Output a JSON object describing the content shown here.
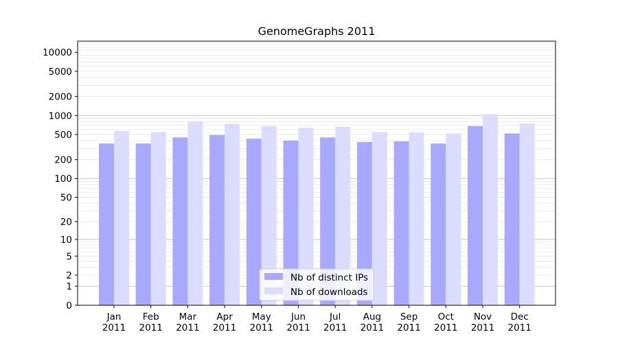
{
  "chart_data": {
    "type": "bar",
    "title": "GenomeGraphs 2011",
    "xlabel": "",
    "ylabel": "",
    "y_scale": "symlog",
    "ylim": [
      0,
      15000
    ],
    "yticks": [
      0,
      1,
      2,
      5,
      10,
      20,
      50,
      100,
      200,
      500,
      1000,
      2000,
      5000,
      10000
    ],
    "ytick_labels": [
      "0",
      "1",
      "2",
      "5",
      "10",
      "20",
      "50",
      "100",
      "200",
      "500",
      "1000",
      "2000",
      "5000",
      "10000"
    ],
    "grid": true,
    "legend_position": "bottom-center",
    "categories": [
      [
        "Jan",
        "2011"
      ],
      [
        "Feb",
        "2011"
      ],
      [
        "Mar",
        "2011"
      ],
      [
        "Apr",
        "2011"
      ],
      [
        "May",
        "2011"
      ],
      [
        "Jun",
        "2011"
      ],
      [
        "Jul",
        "2011"
      ],
      [
        "Aug",
        "2011"
      ],
      [
        "Sep",
        "2011"
      ],
      [
        "Oct",
        "2011"
      ],
      [
        "Nov",
        "2011"
      ],
      [
        "Dec",
        "2011"
      ]
    ],
    "series": [
      {
        "name": "Nb of distinct IPs",
        "color": "#a8a8ff",
        "values": [
          360,
          360,
          450,
          490,
          430,
          400,
          450,
          380,
          390,
          360,
          680,
          520
        ]
      },
      {
        "name": "Nb of downloads",
        "color": "#dcdcff",
        "values": [
          570,
          550,
          800,
          740,
          680,
          640,
          660,
          550,
          540,
          520,
          1050,
          750
        ]
      }
    ]
  }
}
